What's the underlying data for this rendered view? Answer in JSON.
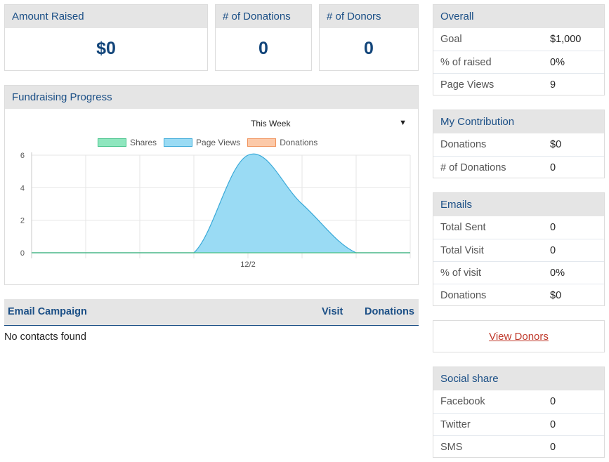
{
  "stats": {
    "amount_raised": {
      "label": "Amount Raised",
      "value": "$0"
    },
    "num_donations": {
      "label": "# of Donations",
      "value": "0"
    },
    "num_donors": {
      "label": "# of Donors",
      "value": "0"
    }
  },
  "progress": {
    "title": "Fundraising Progress",
    "period": "This Week",
    "caret": "▼"
  },
  "chart_data": {
    "type": "area",
    "x": [
      "",
      "",
      "",
      "",
      "12/2",
      "",
      "",
      ""
    ],
    "tick_labels": [
      "12/2"
    ],
    "ylim": [
      0,
      6
    ],
    "yticks": [
      "0",
      "2",
      "4",
      "6"
    ],
    "grid": true,
    "legend_position": "top",
    "series": [
      {
        "name": "Shares",
        "values": [
          0,
          0,
          0,
          0,
          0,
          0,
          0,
          0
        ],
        "color": "#8ee6be",
        "border": "#43c289"
      },
      {
        "name": "Page Views",
        "values": [
          0,
          0,
          0,
          0,
          6,
          3,
          0,
          0
        ],
        "color": "#9adbf4",
        "border": "#39a9d8"
      },
      {
        "name": "Donations",
        "values": [
          0,
          0,
          0,
          0,
          0,
          0,
          0,
          0
        ],
        "color": "#fcc9a8",
        "border": "#f0935c"
      }
    ]
  },
  "email_campaign": {
    "col_campaign": "Email Campaign",
    "col_visit": "Visit",
    "col_donations": "Donations",
    "empty_text": "No contacts found"
  },
  "overall": {
    "title": "Overall",
    "rows": [
      {
        "label": "Goal",
        "value": "$1,000"
      },
      {
        "label": "% of raised",
        "value": "0%"
      },
      {
        "label": "Page Views",
        "value": "9"
      }
    ]
  },
  "my_contribution": {
    "title": "My Contribution",
    "rows": [
      {
        "label": "Donations",
        "value": "$0"
      },
      {
        "label": "# of Donations",
        "value": "0"
      }
    ]
  },
  "emails": {
    "title": "Emails",
    "rows": [
      {
        "label": "Total Sent",
        "value": "0"
      },
      {
        "label": "Total Visit",
        "value": "0"
      },
      {
        "label": "% of visit",
        "value": "0%"
      },
      {
        "label": "Donations",
        "value": "$0"
      }
    ]
  },
  "view_donors": {
    "label": "View Donors"
  },
  "social_share": {
    "title": "Social share",
    "rows": [
      {
        "label": "Facebook",
        "value": "0"
      },
      {
        "label": "Twitter",
        "value": "0"
      },
      {
        "label": "SMS",
        "value": "0"
      }
    ]
  }
}
